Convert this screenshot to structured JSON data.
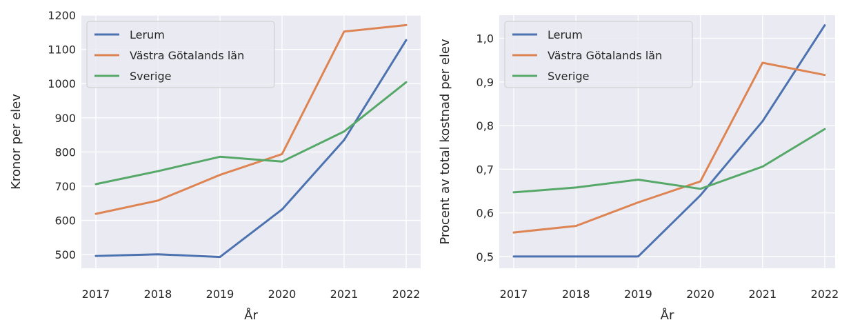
{
  "chart_data": [
    {
      "type": "line",
      "xlabel": "År",
      "ylabel": "Kronor per elev",
      "x": [
        2017,
        2018,
        2019,
        2020,
        2021,
        2022
      ],
      "xticks": [
        "2017",
        "2018",
        "2019",
        "2020",
        "2021",
        "2022"
      ],
      "ylim": [
        460,
        1200
      ],
      "yticks": [
        "500",
        "600",
        "700",
        "800",
        "900",
        "1000",
        "1100",
        "1200"
      ],
      "legend_position": "top-left",
      "grid": true,
      "series": [
        {
          "name": "Lerum",
          "color": "#4c72b0",
          "values": [
            496,
            501,
            493,
            632,
            835,
            1127
          ]
        },
        {
          "name": "Västra Götalands län",
          "color": "#dd8452",
          "values": [
            619,
            658,
            733,
            794,
            1152,
            1171
          ]
        },
        {
          "name": "Sverige",
          "color": "#55a868",
          "values": [
            706,
            744,
            786,
            772,
            860,
            1004
          ]
        }
      ]
    },
    {
      "type": "line",
      "xlabel": "År",
      "ylabel": "Procent av total kostnad per elev",
      "x": [
        2017,
        2018,
        2019,
        2020,
        2021,
        2022
      ],
      "xticks": [
        "2017",
        "2018",
        "2019",
        "2020",
        "2021",
        "2022"
      ],
      "ylim": [
        0.473,
        1.053
      ],
      "yticks": [
        "0,5",
        "0,6",
        "0,7",
        "0,8",
        "0,9",
        "1,0"
      ],
      "legend_position": "top-left",
      "grid": true,
      "series": [
        {
          "name": "Lerum",
          "color": "#4c72b0",
          "values": [
            0.5,
            0.5,
            0.5,
            0.64,
            0.81,
            1.03
          ]
        },
        {
          "name": "Västra Götalands län",
          "color": "#dd8452",
          "values": [
            0.555,
            0.57,
            0.624,
            0.672,
            0.944,
            0.916
          ]
        },
        {
          "name": "Sverige",
          "color": "#55a868",
          "values": [
            0.647,
            0.658,
            0.676,
            0.655,
            0.706,
            0.792
          ]
        }
      ]
    }
  ]
}
